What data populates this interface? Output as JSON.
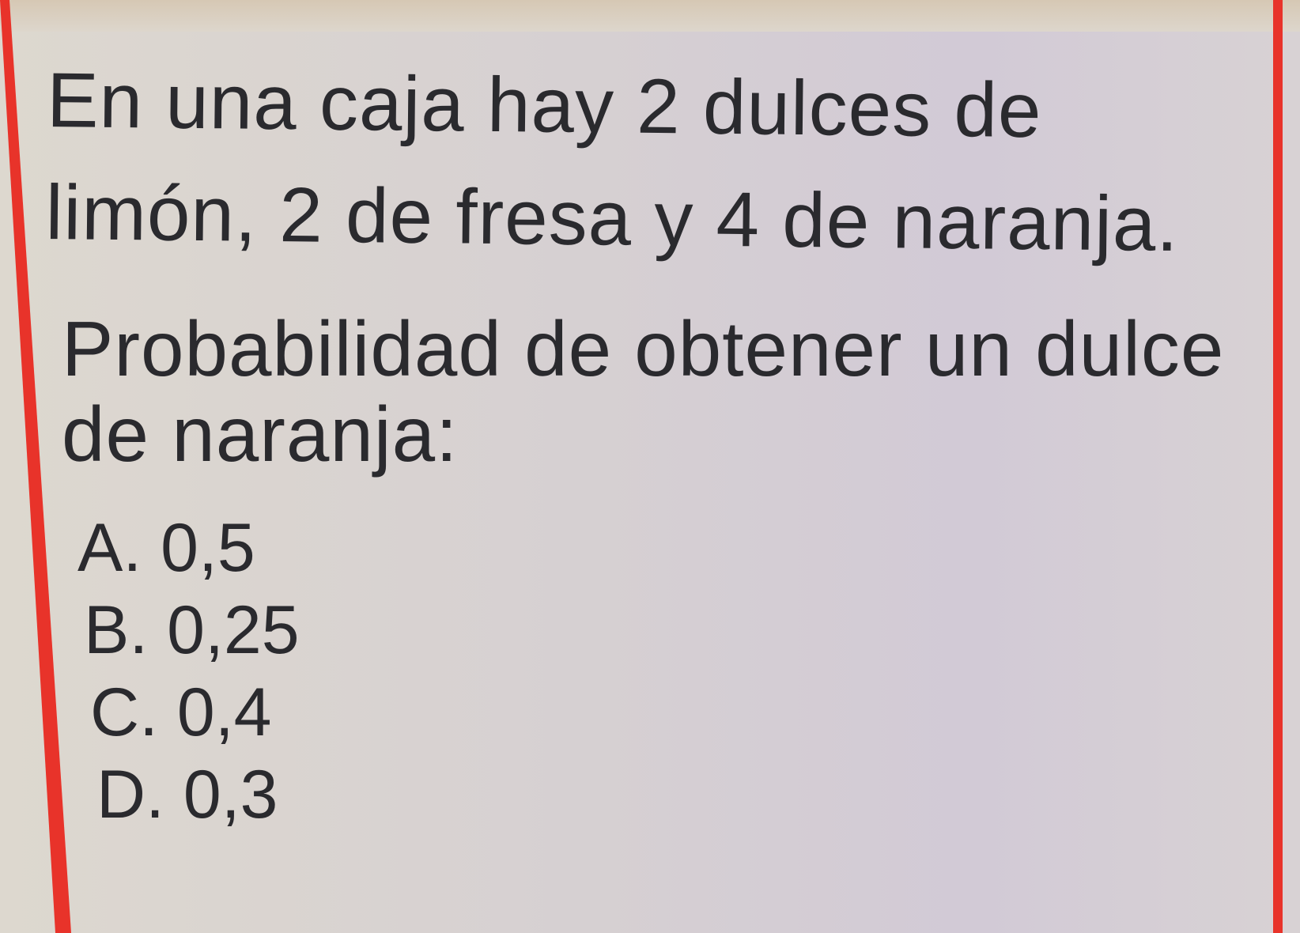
{
  "question": {
    "statement_line1": "En una caja hay 2 dulces de",
    "statement_line2": "limón, 2 de fresa y 4 de naranja.",
    "prompt_line1": "Probabilidad de obtener un dulce",
    "prompt_line2": "de naranja:"
  },
  "options": [
    {
      "label": "A. 0,5"
    },
    {
      "label": "B. 0,25"
    },
    {
      "label": "C. 0,4"
    },
    {
      "label": "D. 0,3"
    }
  ],
  "colors": {
    "border": "#e8332a",
    "text": "#2a2a2e"
  }
}
